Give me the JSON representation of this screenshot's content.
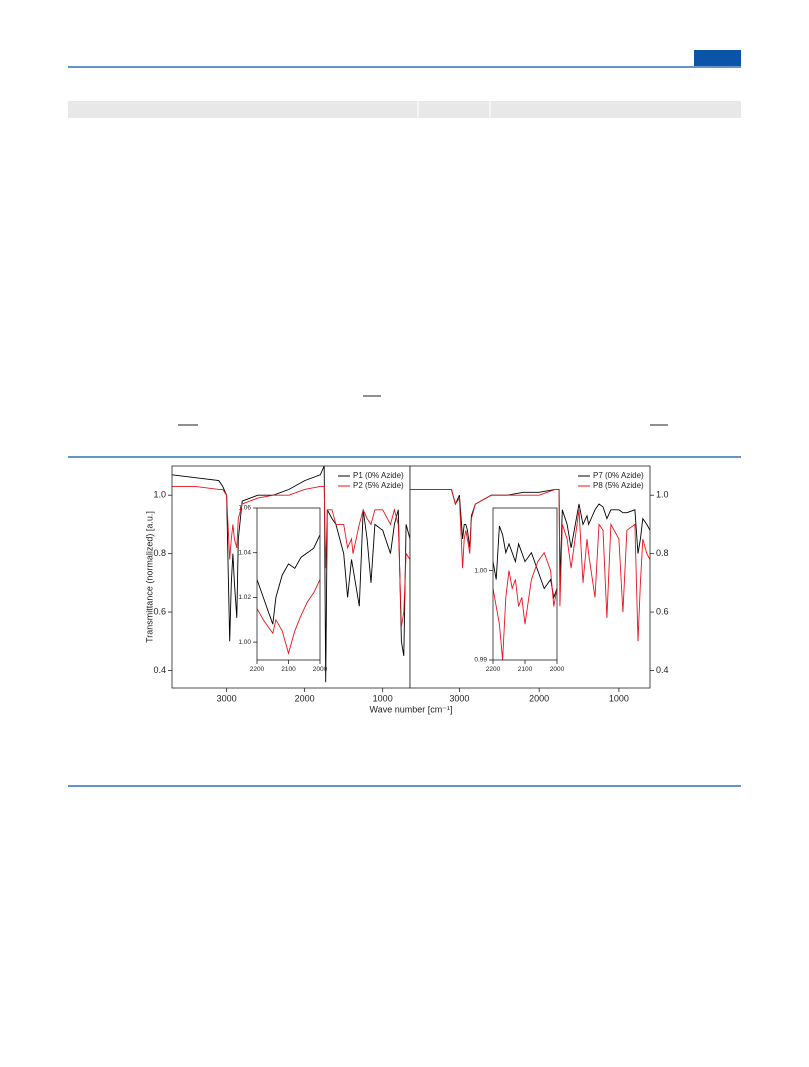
{
  "figure": {
    "x_label": "Wave number [cm⁻¹]",
    "y_label": "Transmittance (normalized) [a.u.]"
  },
  "chart_data": [
    {
      "type": "line",
      "xlim": [
        3700,
        650
      ],
      "ylim": [
        0.34,
        1.1
      ],
      "xticks": [
        3000,
        2000,
        1000
      ],
      "yticks": [
        {
          "value": 0.4,
          "label": "0.4"
        },
        {
          "value": 0.6,
          "label": "0.6"
        },
        {
          "value": 0.8,
          "label": "0.8"
        },
        {
          "value": 1.0,
          "label": "1.0"
        }
      ],
      "ytick_side": "left",
      "legend": "upper right",
      "x": [
        3700,
        3400,
        3100,
        3050,
        3000,
        2960,
        2940,
        2920,
        2900,
        2870,
        2850,
        2800,
        2600,
        2400,
        2200,
        2000,
        1800,
        1750,
        1730,
        1710,
        1650,
        1600,
        1500,
        1450,
        1400,
        1380,
        1300,
        1250,
        1200,
        1150,
        1100,
        1000,
        900,
        850,
        800,
        760,
        730,
        700,
        650
      ],
      "series": [
        {
          "name": "P1 (0% Azide)",
          "color": "#000000",
          "values": [
            1.07,
            1.06,
            1.05,
            1.03,
            1.0,
            0.5,
            0.7,
            0.8,
            0.7,
            0.58,
            0.85,
            0.98,
            1.0,
            1.0,
            1.02,
            1.05,
            1.07,
            1.1,
            0.36,
            0.95,
            0.92,
            0.9,
            0.8,
            0.65,
            0.78,
            0.75,
            0.62,
            0.95,
            0.85,
            0.7,
            0.9,
            0.88,
            0.8,
            0.9,
            0.95,
            0.5,
            0.45,
            0.9,
            0.85
          ]
        },
        {
          "name": "P2 (5% Azide)",
          "color": "#e8141b",
          "values": [
            1.03,
            1.03,
            1.02,
            1.02,
            1.0,
            0.78,
            0.85,
            0.9,
            0.85,
            0.82,
            0.92,
            0.97,
            0.99,
            1.0,
            1.0,
            1.02,
            1.03,
            1.03,
            0.75,
            0.95,
            0.95,
            0.9,
            0.9,
            0.82,
            0.85,
            0.8,
            0.9,
            0.95,
            0.92,
            0.9,
            0.95,
            0.95,
            0.9,
            0.95,
            0.9,
            0.55,
            0.6,
            0.8,
            0.78
          ]
        }
      ]
    },
    {
      "type": "line",
      "xlim": [
        3620,
        610
      ],
      "ylim": [
        0.34,
        1.1
      ],
      "xticks": [
        3000,
        2000,
        1000
      ],
      "yticks": [
        {
          "value": 0.4,
          "label": "0.4"
        },
        {
          "value": 0.6,
          "label": "0.6"
        },
        {
          "value": 0.8,
          "label": "0.8"
        },
        {
          "value": 1.0,
          "label": "1.0"
        }
      ],
      "ytick_side": "right",
      "legend": "upper right",
      "x": [
        3620,
        3400,
        3100,
        3050,
        3000,
        2960,
        2940,
        2920,
        2900,
        2870,
        2850,
        2800,
        2600,
        2400,
        2200,
        2000,
        1800,
        1750,
        1740,
        1710,
        1650,
        1600,
        1500,
        1450,
        1400,
        1380,
        1300,
        1250,
        1200,
        1150,
        1100,
        1000,
        950,
        900,
        800,
        760,
        730,
        700,
        650,
        610
      ],
      "series": [
        {
          "name": "P7 (0% Azide)",
          "color": "#000000",
          "values": [
            1.02,
            1.02,
            1.02,
            0.97,
            1.0,
            0.85,
            0.9,
            0.9,
            0.88,
            0.82,
            0.93,
            0.97,
            1.0,
            1.0,
            1.01,
            1.01,
            1.02,
            1.02,
            0.7,
            0.95,
            0.9,
            0.82,
            0.97,
            0.9,
            0.93,
            0.9,
            0.95,
            0.97,
            0.96,
            0.92,
            0.95,
            0.95,
            0.94,
            0.94,
            0.95,
            0.8,
            0.85,
            0.92,
            0.9,
            0.88
          ]
        },
        {
          "name": "P8 (5% Azide)",
          "color": "#e8141b",
          "values": [
            1.02,
            1.02,
            1.02,
            0.97,
            0.99,
            0.75,
            0.85,
            0.88,
            0.85,
            0.8,
            0.92,
            0.97,
            1.0,
            1.0,
            1.0,
            1.0,
            1.02,
            1.02,
            0.62,
            0.9,
            0.85,
            0.75,
            0.95,
            0.7,
            0.85,
            0.8,
            0.65,
            0.9,
            0.88,
            0.58,
            0.9,
            0.85,
            0.6,
            0.88,
            0.9,
            0.5,
            0.7,
            0.85,
            0.8,
            0.78
          ]
        }
      ]
    },
    {
      "type": "line",
      "xlim": [
        2200,
        2000
      ],
      "ylim": [
        0.992,
        1.06
      ],
      "xticks": [
        2200,
        2100,
        2000
      ],
      "yticks": [
        {
          "value": 1.0,
          "label": "1.00"
        },
        {
          "value": 1.02,
          "label": "1.02"
        },
        {
          "value": 1.04,
          "label": "1.04"
        },
        {
          "value": 1.06,
          "label": "1.06"
        }
      ],
      "ytick_side": "left",
      "x": [
        2200,
        2180,
        2160,
        2150,
        2140,
        2120,
        2100,
        2080,
        2060,
        2040,
        2020,
        2000
      ],
      "series": [
        {
          "color": "#000000",
          "values": [
            1.028,
            1.02,
            1.012,
            1.008,
            1.02,
            1.03,
            1.035,
            1.033,
            1.038,
            1.04,
            1.042,
            1.048
          ]
        },
        {
          "color": "#e8141b",
          "values": [
            1.015,
            1.01,
            1.006,
            1.004,
            1.01,
            1.005,
            0.995,
            1.005,
            1.012,
            1.018,
            1.022,
            1.028
          ]
        }
      ]
    },
    {
      "type": "line",
      "xlim": [
        2200,
        2000
      ],
      "ylim": [
        0.99,
        1.007
      ],
      "xticks": [
        2200,
        2100,
        2000
      ],
      "yticks": [
        {
          "value": 0.99,
          "label": "0.99"
        },
        {
          "value": 1.0,
          "label": "1.00"
        }
      ],
      "ytick_side": "left",
      "x": [
        2200,
        2190,
        2180,
        2170,
        2160,
        2150,
        2140,
        2130,
        2120,
        2110,
        2100,
        2080,
        2060,
        2040,
        2020,
        2010,
        2000
      ],
      "series": [
        {
          "color": "#000000",
          "values": [
            1.001,
            0.999,
            1.005,
            1.004,
            1.002,
            1.003,
            1.002,
            1.001,
            1.003,
            1.002,
            1.001,
            1.002,
            1.0,
            0.998,
            0.999,
            0.997,
            0.998
          ]
        },
        {
          "color": "#e8141b",
          "values": [
            0.998,
            0.996,
            0.994,
            0.99,
            0.997,
            1.0,
            0.998,
            0.999,
            0.996,
            0.997,
            0.994,
            0.999,
            1.001,
            1.002,
            1.0,
            0.996,
            0.998
          ]
        }
      ]
    }
  ]
}
